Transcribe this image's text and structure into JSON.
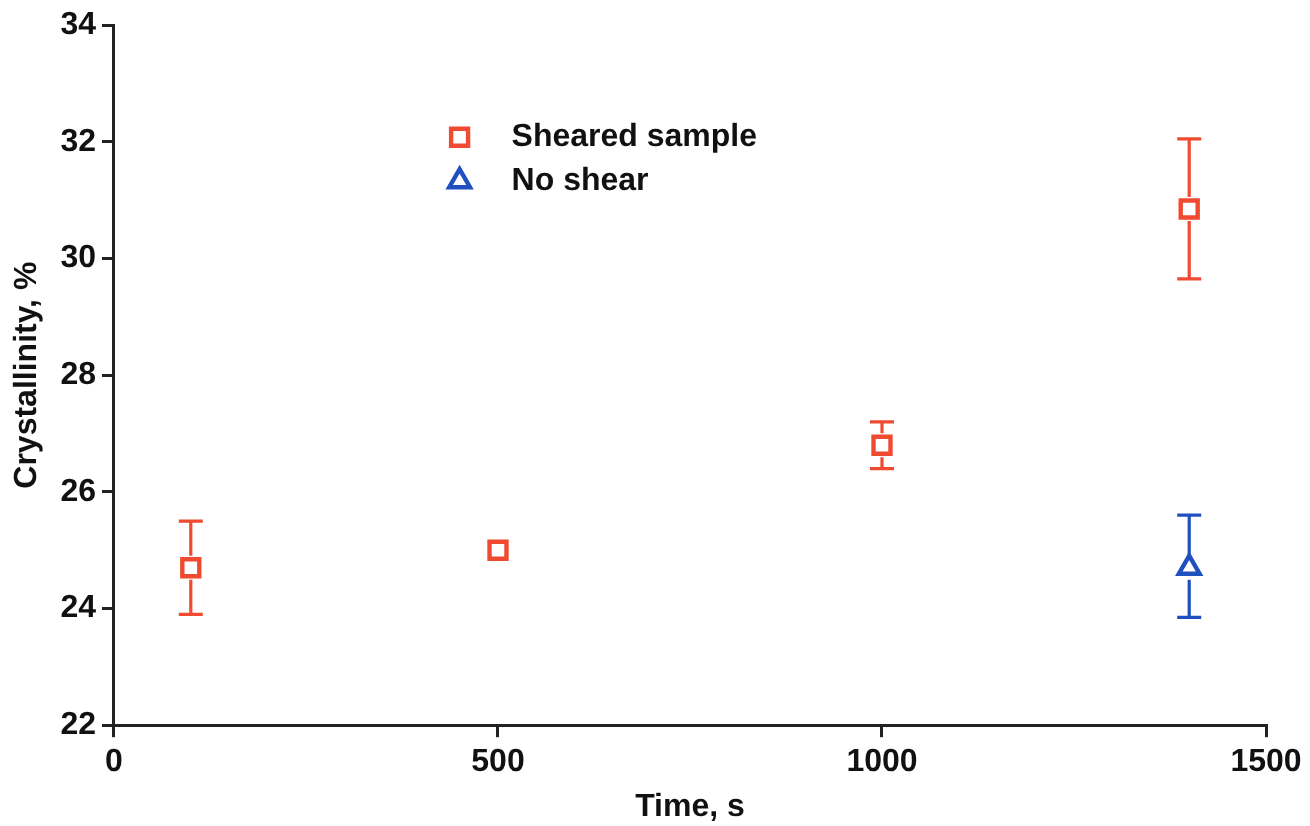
{
  "chart_data": {
    "type": "scatter",
    "xlabel": "Time, s",
    "ylabel": "Crystallinity, %",
    "xlim": [
      0,
      1500
    ],
    "xticks": [
      0,
      500,
      1000,
      1500
    ],
    "ylim": [
      22,
      34
    ],
    "yticks": [
      22,
      24,
      26,
      28,
      30,
      32,
      34
    ],
    "grid": false,
    "legend": "top",
    "line_style": "solid",
    "series": [
      {
        "name": "Sheared sample",
        "color": "#f04a30",
        "marker": "square",
        "x": [
          100,
          500,
          1000,
          1400
        ],
        "values": [
          24.7,
          25.0,
          26.8,
          30.85
        ],
        "errors": [
          0.8,
          null,
          0.4,
          1.2
        ]
      },
      {
        "name": "No shear",
        "color": "#2050c0",
        "marker": "triangle",
        "x": [
          1400
        ],
        "values": [
          24.7
        ],
        "errors": [
          [
            23.85,
            25.6
          ]
        ]
      }
    ]
  }
}
